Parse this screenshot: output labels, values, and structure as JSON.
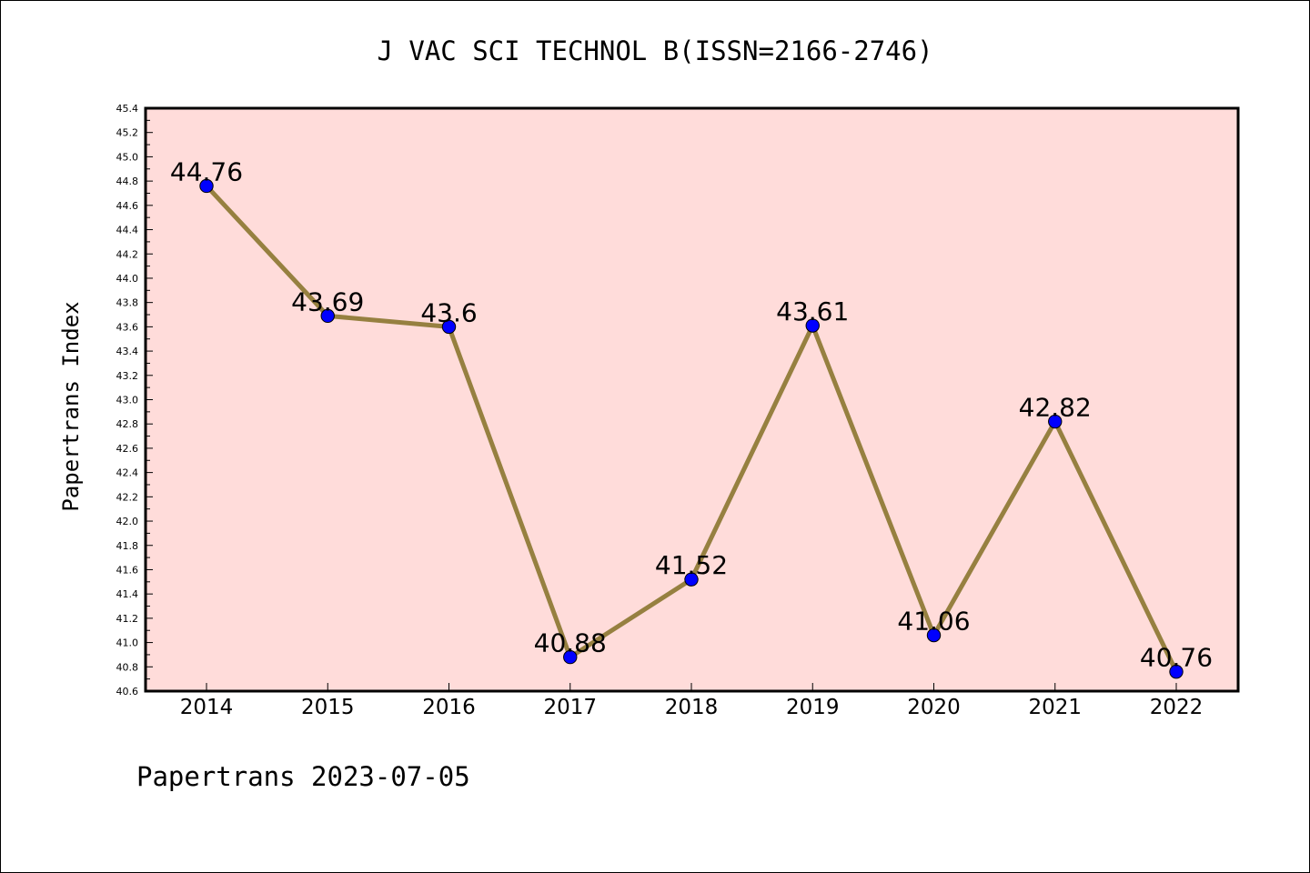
{
  "chart_data": {
    "type": "line",
    "title": "J VAC SCI TECHNOL B(ISSN=2166-2746)",
    "ylabel": "Papertrans Index",
    "xlabel": "",
    "footer": "Papertrans 2023-07-05",
    "categories": [
      "2014",
      "2015",
      "2016",
      "2017",
      "2018",
      "2019",
      "2020",
      "2021",
      "2022"
    ],
    "values": [
      44.76,
      43.69,
      43.6,
      40.88,
      41.52,
      43.61,
      41.06,
      42.82,
      40.76
    ],
    "data_labels": [
      "44.76",
      "43.69",
      "43.6",
      "40.88",
      "41.52",
      "43.61",
      "41.06",
      "42.82",
      "40.76"
    ],
    "ylim": [
      40.6,
      45.4
    ],
    "yticks": [
      "40.6",
      "40.8",
      "41.0",
      "41.2",
      "41.4",
      "41.6",
      "41.8",
      "42.0",
      "42.2",
      "42.4",
      "42.6",
      "42.8",
      "43.0",
      "43.2",
      "43.4",
      "43.6",
      "43.8",
      "44.0",
      "44.2",
      "44.4",
      "44.6",
      "44.8",
      "45.0",
      "45.2",
      "45.4"
    ],
    "grid": false,
    "legend": "none",
    "colors": {
      "plot_background": "#ffdcda",
      "line": "#968040",
      "marker": "#0000ff",
      "axis": "#000000"
    }
  }
}
